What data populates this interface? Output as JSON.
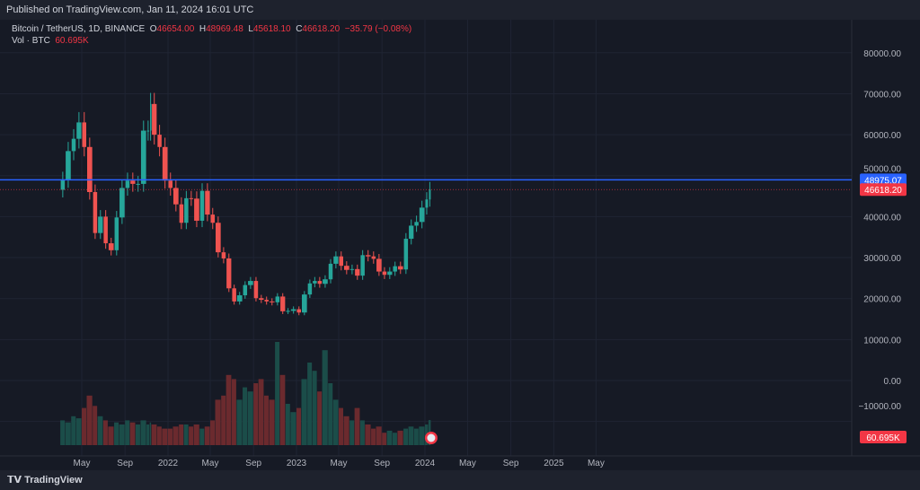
{
  "header": {
    "published": "Published on TradingView.com, Jan 11, 2024 16:01 UTC"
  },
  "legend": {
    "symbol": "Bitcoin / TetherUS, 1D, BINANCE",
    "o_label": "O",
    "o": "46654.00",
    "h_label": "H",
    "h": "48969.48",
    "l_label": "L",
    "l": "45618.10",
    "c_label": "C",
    "c": "46618.20",
    "change": "−35.79 (−0.08%)",
    "vol_label": "Vol · BTC",
    "vol": "60.695K"
  },
  "footer": {
    "brand": "TradingView"
  },
  "colors": {
    "up": "#26a69a",
    "down": "#ef5350",
    "hline": "#2962ff",
    "last": "#f23645",
    "bg": "#161a25"
  },
  "chart_data": {
    "type": "candlestick",
    "ylim": [
      -15000,
      85000
    ],
    "y_ticks": [
      "80000.00",
      "70000.00",
      "60000.00",
      "50000.00",
      "40000.00",
      "30000.00",
      "20000.00",
      "10000.00",
      "0.00",
      "−10000.00"
    ],
    "y_tick_values": [
      80000,
      70000,
      60000,
      50000,
      40000,
      30000,
      20000,
      10000,
      0,
      -10000
    ],
    "x_ticks": [
      "May",
      "Sep",
      "2022",
      "May",
      "Sep",
      "2023",
      "May",
      "Sep",
      "2024",
      "May",
      "Sep",
      "2025",
      "May"
    ],
    "x_tick_dates": [
      "2021-05-01",
      "2021-09-01",
      "2022-01-01",
      "2022-05-01",
      "2022-09-01",
      "2023-01-01",
      "2023-05-01",
      "2023-09-01",
      "2024-01-01",
      "2024-05-01",
      "2024-09-01",
      "2025-01-01",
      "2025-05-01"
    ],
    "horizontal_line": {
      "value": 48975.07,
      "label": "48975.07"
    },
    "last_price": {
      "value": 46618.2,
      "label": "46618.20"
    },
    "volume_label": "60.695K",
    "dates": [
      "2021-03-01",
      "2021-03-15",
      "2021-04-01",
      "2021-04-15",
      "2021-05-01",
      "2021-05-15",
      "2021-06-01",
      "2021-06-15",
      "2021-07-01",
      "2021-07-15",
      "2021-08-01",
      "2021-08-15",
      "2021-09-01",
      "2021-09-15",
      "2021-10-01",
      "2021-10-15",
      "2021-11-01",
      "2021-11-10",
      "2021-11-15",
      "2021-12-01",
      "2021-12-15",
      "2022-01-01",
      "2022-01-15",
      "2022-02-01",
      "2022-02-15",
      "2022-03-01",
      "2022-03-15",
      "2022-04-01",
      "2022-04-15",
      "2022-05-01",
      "2022-05-15",
      "2022-06-01",
      "2022-06-15",
      "2022-07-01",
      "2022-07-15",
      "2022-08-01",
      "2022-08-15",
      "2022-09-01",
      "2022-09-15",
      "2022-10-01",
      "2022-10-15",
      "2022-11-01",
      "2022-11-15",
      "2022-12-01",
      "2022-12-15",
      "2023-01-01",
      "2023-01-15",
      "2023-02-01",
      "2023-02-15",
      "2023-03-01",
      "2023-03-15",
      "2023-04-01",
      "2023-04-15",
      "2023-05-01",
      "2023-05-15",
      "2023-06-01",
      "2023-06-15",
      "2023-07-01",
      "2023-07-15",
      "2023-08-01",
      "2023-08-15",
      "2023-09-01",
      "2023-09-15",
      "2023-10-01",
      "2023-10-15",
      "2023-11-01",
      "2023-11-15",
      "2023-12-01",
      "2023-12-15",
      "2024-01-01",
      "2024-01-11"
    ],
    "close": [
      49000,
      56000,
      59000,
      63000,
      57000,
      46000,
      36000,
      40000,
      33500,
      31800,
      39800,
      47000,
      48800,
      48000,
      48000,
      61000,
      61000,
      67500,
      60000,
      57000,
      48800,
      47000,
      43000,
      38500,
      44500,
      44400,
      39000,
      46300,
      40500,
      38500,
      31300,
      29800,
      22500,
      19300,
      20800,
      23300,
      24300,
      20100,
      19700,
      19300,
      19100,
      20500,
      16900,
      17000,
      17400,
      16600,
      21000,
      23700,
      24300,
      23600,
      24700,
      28500,
      30300,
      28000,
      27000,
      27200,
      25600,
      30600,
      30300,
      29700,
      26600,
      25800,
      26600,
      27900,
      27100,
      34600,
      37800,
      38700,
      42200,
      44200,
      46618.2
    ],
    "volume_k": [
      60,
      55,
      70,
      65,
      90,
      120,
      95,
      70,
      60,
      45,
      55,
      50,
      60,
      55,
      50,
      60,
      50,
      55,
      50,
      45,
      40,
      40,
      45,
      50,
      50,
      45,
      50,
      40,
      45,
      60,
      110,
      120,
      170,
      160,
      110,
      140,
      130,
      150,
      160,
      120,
      110,
      250,
      170,
      100,
      80,
      90,
      160,
      200,
      180,
      130,
      230,
      150,
      110,
      90,
      70,
      60,
      90,
      60,
      50,
      40,
      45,
      30,
      35,
      30,
      35,
      40,
      45,
      40,
      45,
      50,
      60.695
    ]
  }
}
